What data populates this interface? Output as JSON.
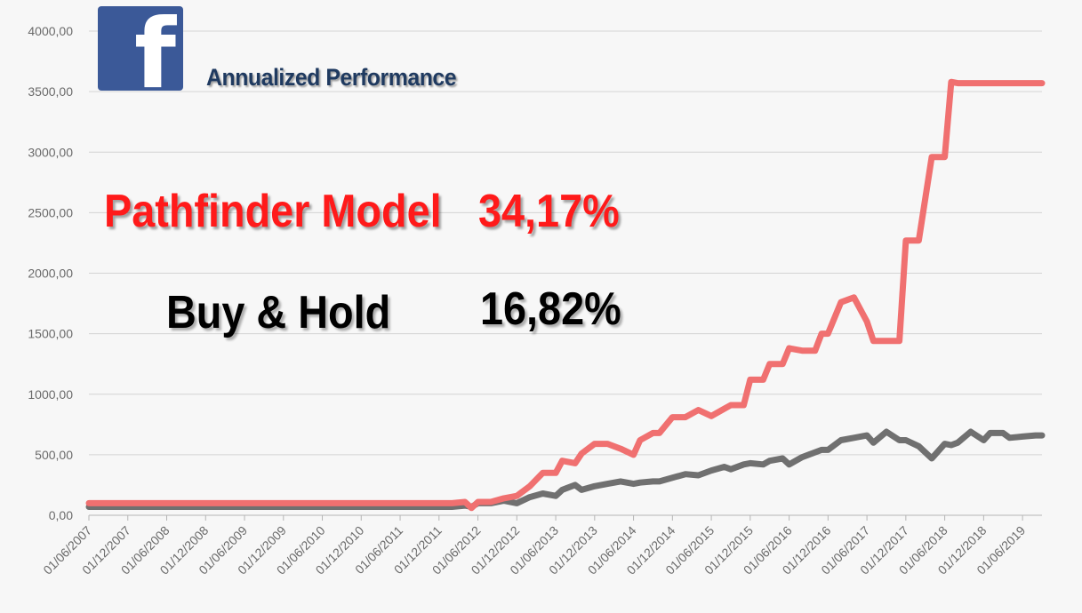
{
  "title": "Annualized Performance",
  "logo": {
    "icon": "facebook-logo-icon",
    "glyph": "f",
    "color": "#3b5998"
  },
  "annotations": {
    "model_label": "Pathfinder Model",
    "model_value": "34,17%",
    "bh_label": "Buy & Hold",
    "bh_value": "16,82%"
  },
  "chart_data": {
    "type": "line",
    "title": "Annualized Performance",
    "xlabel": "",
    "ylabel": "",
    "ylim": [
      0,
      4000
    ],
    "yticks": [
      "0,00",
      "500,00",
      "1000,00",
      "1500,00",
      "2000,00",
      "2500,00",
      "3000,00",
      "3500,00",
      "4000,00"
    ],
    "grid": true,
    "xtick_labels": [
      "01/06/2007",
      "01/12/2007",
      "01/06/2008",
      "01/12/2008",
      "01/06/2009",
      "01/12/2009",
      "01/06/2010",
      "01/12/2010",
      "01/06/2011",
      "01/12/2011",
      "01/06/2012",
      "01/12/2012",
      "01/06/2013",
      "01/12/2013",
      "01/06/2014",
      "01/12/2014",
      "01/06/2015",
      "01/12/2015",
      "01/06/2016",
      "01/12/2016",
      "01/06/2017",
      "01/12/2017",
      "01/06/2018",
      "01/12/2018",
      "01/06/2019"
    ],
    "x": [
      "2007-06",
      "2007-12",
      "2008-06",
      "2008-12",
      "2009-06",
      "2009-12",
      "2010-06",
      "2010-12",
      "2011-06",
      "2011-12",
      "2012-02",
      "2012-04",
      "2012-05",
      "2012-06",
      "2012-08",
      "2012-10",
      "2012-12",
      "2013-02",
      "2013-04",
      "2013-06",
      "2013-07",
      "2013-09",
      "2013-10",
      "2013-12",
      "2014-02",
      "2014-04",
      "2014-06",
      "2014-07",
      "2014-09",
      "2014-10",
      "2014-12",
      "2015-02",
      "2015-04",
      "2015-06",
      "2015-08",
      "2015-09",
      "2015-11",
      "2015-12",
      "2016-02",
      "2016-03",
      "2016-05",
      "2016-06",
      "2016-08",
      "2016-10",
      "2016-11",
      "2016-12",
      "2017-02",
      "2017-04",
      "2017-06",
      "2017-07",
      "2017-09",
      "2017-11",
      "2017-12",
      "2018-02",
      "2018-04",
      "2018-06",
      "2018-07",
      "2018-08",
      "2018-10",
      "2018-12",
      "2019-01",
      "2019-03",
      "2019-04",
      "2019-06",
      "2019-08",
      "2019-09"
    ],
    "series": [
      {
        "name": "Pathfinder Model",
        "color": "#f07070",
        "values": [
          100,
          100,
          100,
          100,
          100,
          100,
          100,
          100,
          100,
          100,
          100,
          110,
          60,
          110,
          110,
          140,
          160,
          240,
          350,
          350,
          450,
          430,
          510,
          590,
          590,
          550,
          500,
          620,
          680,
          680,
          810,
          810,
          870,
          820,
          880,
          910,
          910,
          1120,
          1120,
          1250,
          1250,
          1380,
          1360,
          1360,
          1500,
          1500,
          1760,
          1800,
          1600,
          1440,
          1440,
          1440,
          2270,
          2270,
          2960,
          2960,
          3580,
          3570,
          3570,
          3570,
          3570,
          3570,
          3570,
          3570,
          3570,
          3570
        ]
      },
      {
        "name": "Buy & Hold",
        "color": "#707070",
        "values": [
          70,
          70,
          70,
          70,
          70,
          70,
          70,
          70,
          70,
          70,
          70,
          80,
          70,
          100,
          100,
          120,
          100,
          150,
          180,
          160,
          210,
          250,
          210,
          240,
          260,
          280,
          260,
          270,
          280,
          280,
          310,
          340,
          330,
          370,
          400,
          380,
          420,
          430,
          420,
          450,
          470,
          420,
          480,
          520,
          540,
          540,
          620,
          640,
          660,
          600,
          690,
          620,
          620,
          570,
          470,
          590,
          580,
          600,
          690,
          620,
          680,
          680,
          640,
          650,
          660,
          660
        ]
      }
    ]
  }
}
